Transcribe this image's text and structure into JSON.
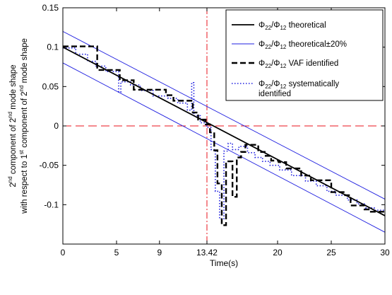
{
  "chart_data": {
    "type": "line",
    "title": "",
    "xlabel": "Time(s)",
    "ylabel_lines": [
      [
        "2",
        "nd",
        " component of 2",
        "nd",
        " mode shape"
      ],
      [
        "with respect to 1",
        "st",
        " component of 2",
        "nd",
        " mode shape"
      ]
    ],
    "xlim": [
      0,
      30
    ],
    "ylim": [
      -0.15,
      0.15
    ],
    "xticks": [
      0,
      5,
      9,
      13.42,
      20,
      25,
      30
    ],
    "xtick_labels": [
      "0",
      "5",
      "9",
      "13.42",
      "20",
      "25",
      "30"
    ],
    "yticks": [
      0.15,
      0.1,
      0.05,
      0,
      -0.05,
      -0.1
    ],
    "ytick_labels": [
      "0.15",
      "0.1",
      "0.05",
      "0",
      "-0.05",
      "-0.1"
    ],
    "grid": false,
    "legend_position": "top-right",
    "reference_lines": [
      {
        "orientation": "horizontal",
        "value": 0,
        "color": "#e8141c",
        "style": "dash"
      },
      {
        "orientation": "vertical",
        "value": 13.42,
        "color": "#e8141c",
        "style": "dashdot"
      }
    ],
    "series": [
      {
        "key": "theoretical",
        "legend": [
          "Φ",
          "22",
          "/Φ",
          "12",
          " theoretical"
        ],
        "color": "#000000",
        "style": "solid",
        "width": 1.8,
        "x": [
          0,
          30
        ],
        "y": [
          0.1,
          -0.114
        ]
      },
      {
        "key": "upper",
        "legend": [
          "Φ",
          "22",
          "/Φ",
          "12",
          " theoretical±20%"
        ],
        "color": "#1f1fe0",
        "style": "solid",
        "width": 0.9,
        "x": [
          0,
          30
        ],
        "y": [
          0.12,
          -0.093
        ]
      },
      {
        "key": "lower",
        "legend": null,
        "color": "#1f1fe0",
        "style": "solid",
        "width": 0.9,
        "x": [
          0,
          30
        ],
        "y": [
          0.08,
          -0.135
        ]
      },
      {
        "key": "vaf",
        "legend": [
          "Φ",
          "22",
          "/Φ",
          "12",
          " VAF identified"
        ],
        "color": "#000000",
        "style": "dash",
        "width": 2.4,
        "x": [
          0,
          2,
          2,
          3.2,
          3.2,
          5.3,
          5.3,
          6.6,
          6.6,
          7.5,
          7.5,
          9.6,
          9.6,
          10.3,
          10.3,
          11.4,
          11.4,
          12.1,
          12.1,
          12.6,
          12.6,
          13.3,
          13.3,
          13.7,
          13.7,
          14.1,
          14.1,
          14.4,
          14.4,
          14.8,
          14.8,
          15.2,
          15.2,
          15.8,
          15.8,
          16.2,
          16.2,
          16.6,
          16.6,
          17.0,
          17.0,
          17.5,
          17.5,
          18.2,
          18.2,
          18.8,
          18.8,
          19.4,
          19.4,
          20.1,
          20.1,
          20.8,
          20.8,
          22.2,
          22.2,
          23.1,
          23.1,
          24.4,
          24.4,
          25.0,
          25.0,
          26.3,
          26.3,
          26.8,
          26.8,
          28.1,
          28.1,
          28.6,
          28.6,
          30
        ],
        "y": [
          0.101,
          0.101,
          0.101,
          0.101,
          0.071,
          0.071,
          0.058,
          0.058,
          0.046,
          0.046,
          0.046,
          0.046,
          0.039,
          0.039,
          0.032,
          0.032,
          0.032,
          0.032,
          0.017,
          0.017,
          0.008,
          0.008,
          0.002,
          0.002,
          -0.008,
          -0.008,
          -0.031,
          -0.031,
          -0.073,
          -0.073,
          -0.126,
          -0.126,
          -0.045,
          -0.045,
          -0.09,
          -0.09,
          -0.04,
          -0.04,
          -0.033,
          -0.033,
          -0.024,
          -0.024,
          -0.024,
          -0.024,
          -0.033,
          -0.033,
          -0.038,
          -0.038,
          -0.044,
          -0.044,
          -0.046,
          -0.046,
          -0.054,
          -0.054,
          -0.063,
          -0.063,
          -0.069,
          -0.069,
          -0.069,
          -0.069,
          -0.084,
          -0.084,
          -0.088,
          -0.088,
          -0.101,
          -0.101,
          -0.106,
          -0.106,
          -0.109,
          -0.109
        ]
      },
      {
        "key": "systematic",
        "legend": [
          "Φ",
          "22",
          "/Φ",
          "12",
          " systematically"
        ],
        "legend_extra": "identified",
        "color": "#1f1fe0",
        "style": "dot",
        "width": 1.6,
        "x": [
          0,
          1.2,
          1.2,
          2.3,
          2.3,
          3.1,
          3.1,
          4.0,
          4.0,
          5.2,
          5.2,
          5.4,
          5.4,
          6.3,
          6.3,
          7.2,
          7.2,
          8.4,
          8.4,
          9.8,
          9.8,
          10.7,
          10.7,
          11.6,
          11.6,
          12.0,
          12.0,
          12.2,
          12.2,
          12.8,
          12.8,
          13.4,
          13.4,
          13.8,
          13.8,
          14.2,
          14.2,
          14.6,
          14.6,
          15.0,
          15.0,
          15.4,
          15.4,
          15.8,
          15.8,
          16.4,
          16.4,
          17.2,
          17.2,
          17.9,
          17.9,
          18.6,
          18.6,
          19.3,
          19.3,
          20.2,
          20.2,
          21.3,
          21.3,
          22.6,
          22.6,
          23.6,
          23.6,
          24.6,
          24.6,
          25.4,
          25.4,
          26.5,
          26.5,
          27.4,
          27.4,
          28.2,
          28.2,
          29.0,
          29.0,
          30
        ],
        "y": [
          0.099,
          0.099,
          0.091,
          0.091,
          0.082,
          0.082,
          0.076,
          0.076,
          0.069,
          0.069,
          0.043,
          0.043,
          0.056,
          0.056,
          0.052,
          0.052,
          0.045,
          0.045,
          0.038,
          0.038,
          0.035,
          0.035,
          0.029,
          0.029,
          0.02,
          0.02,
          0.055,
          0.055,
          0.013,
          0.013,
          0.004,
          0.004,
          -0.002,
          -0.002,
          -0.03,
          -0.03,
          -0.083,
          -0.083,
          -0.118,
          -0.118,
          -0.032,
          -0.032,
          -0.022,
          -0.022,
          -0.03,
          -0.03,
          -0.026,
          -0.026,
          -0.034,
          -0.034,
          -0.04,
          -0.04,
          -0.045,
          -0.045,
          -0.05,
          -0.05,
          -0.056,
          -0.056,
          -0.063,
          -0.063,
          -0.07,
          -0.07,
          -0.076,
          -0.076,
          -0.083,
          -0.083,
          -0.088,
          -0.088,
          -0.094,
          -0.094,
          -0.099,
          -0.099,
          -0.104,
          -0.104,
          -0.107,
          -0.107
        ]
      }
    ]
  }
}
